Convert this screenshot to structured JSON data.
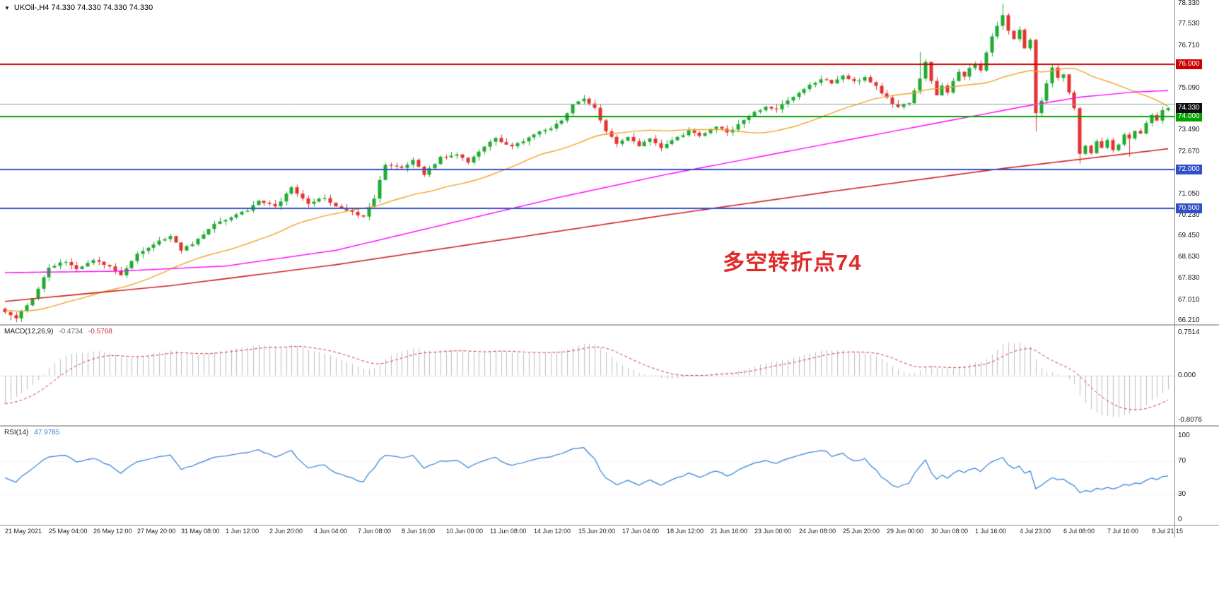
{
  "header": {
    "symbol_ohlc_label": "UKOil-,H4 74.330 74.330 74.330 74.330"
  },
  "annotation": {
    "text": "多空转折点74",
    "color": "#e02a2a"
  },
  "colors": {
    "up": "#1fab30",
    "down": "#e43232",
    "ma_fast": "#efa32a",
    "ma_mid": "#ff00ff",
    "ma_slow": "#d02020",
    "macd_hist": "#bdbdbd",
    "macd_signal": "#d43434",
    "rsi": "#2f7fd6",
    "axis_text": "#1a1a1a",
    "tag_current_bg": "#101010"
  },
  "chart_data": [
    {
      "type": "candlestick",
      "symbol": "UKOil-",
      "timeframe": "H4",
      "bars": 212,
      "current_price": 74.33,
      "ylim": [
        66.08,
        78.46
      ],
      "noise": 0.09,
      "wick": 0.16,
      "noise_seed": 29,
      "close_path": [
        [
          0,
          66.5
        ],
        [
          2,
          66.3
        ],
        [
          5,
          67.1
        ],
        [
          8,
          68.2
        ],
        [
          11,
          68.5
        ],
        [
          13,
          68.15
        ],
        [
          16,
          68.55
        ],
        [
          19,
          68.3
        ],
        [
          21,
          67.95
        ],
        [
          24,
          68.75
        ],
        [
          27,
          69.15
        ],
        [
          30,
          69.45
        ],
        [
          32,
          68.9
        ],
        [
          35,
          69.3
        ],
        [
          38,
          69.9
        ],
        [
          41,
          70.15
        ],
        [
          44,
          70.45
        ],
        [
          46,
          70.8
        ],
        [
          49,
          70.55
        ],
        [
          52,
          71.3
        ],
        [
          55,
          70.7
        ],
        [
          58,
          70.9
        ],
        [
          60,
          70.55
        ],
        [
          63,
          70.35
        ],
        [
          65,
          70.2
        ],
        [
          67,
          70.9
        ],
        [
          69,
          72.2
        ],
        [
          72,
          72.05
        ],
        [
          74,
          72.35
        ],
        [
          76,
          71.8
        ],
        [
          79,
          72.45
        ],
        [
          82,
          72.6
        ],
        [
          84,
          72.25
        ],
        [
          87,
          72.9
        ],
        [
          89,
          73.15
        ],
        [
          92,
          72.85
        ],
        [
          94,
          73.1
        ],
        [
          97,
          73.45
        ],
        [
          99,
          73.55
        ],
        [
          101,
          73.85
        ],
        [
          103,
          74.45
        ],
        [
          105,
          74.7
        ],
        [
          107,
          74.3
        ],
        [
          109,
          73.45
        ],
        [
          111,
          72.95
        ],
        [
          113,
          73.25
        ],
        [
          115,
          72.9
        ],
        [
          117,
          73.2
        ],
        [
          119,
          72.8
        ],
        [
          121,
          73.1
        ],
        [
          124,
          73.45
        ],
        [
          126,
          73.3
        ],
        [
          129,
          73.6
        ],
        [
          131,
          73.4
        ],
        [
          134,
          73.85
        ],
        [
          136,
          74.15
        ],
        [
          138,
          74.4
        ],
        [
          140,
          74.3
        ],
        [
          142,
          74.65
        ],
        [
          144,
          74.9
        ],
        [
          146,
          75.2
        ],
        [
          148,
          75.45
        ],
        [
          150,
          75.3
        ],
        [
          152,
          75.55
        ],
        [
          154,
          75.35
        ],
        [
          156,
          75.5
        ],
        [
          158,
          75.15
        ],
        [
          160,
          74.7
        ],
        [
          162,
          74.35
        ],
        [
          164,
          74.55
        ],
        [
          166,
          75.5
        ],
        [
          167,
          76.1
        ],
        [
          168,
          75.4
        ],
        [
          169,
          74.85
        ],
        [
          170,
          75.2
        ],
        [
          171,
          74.9
        ],
        [
          172,
          75.35
        ],
        [
          173,
          75.7
        ],
        [
          174,
          75.5
        ],
        [
          175,
          75.85
        ],
        [
          176,
          76.05
        ],
        [
          177,
          75.8
        ],
        [
          178,
          76.45
        ],
        [
          179,
          77.05
        ],
        [
          180,
          77.5
        ],
        [
          181,
          77.9
        ],
        [
          182,
          77.3
        ],
        [
          183,
          77.0
        ],
        [
          184,
          77.35
        ],
        [
          185,
          76.6
        ],
        [
          186,
          76.9
        ],
        [
          187,
          74.1
        ],
        [
          188,
          74.6
        ],
        [
          189,
          75.3
        ],
        [
          190,
          75.85
        ],
        [
          191,
          75.5
        ],
        [
          192,
          75.6
        ],
        [
          193,
          74.9
        ],
        [
          194,
          74.3
        ],
        [
          195,
          72.6
        ],
        [
          196,
          72.85
        ],
        [
          197,
          72.6
        ],
        [
          198,
          73.1
        ],
        [
          199,
          72.8
        ],
        [
          200,
          73.15
        ],
        [
          201,
          72.7
        ],
        [
          202,
          72.95
        ],
        [
          203,
          73.3
        ],
        [
          204,
          73.2
        ],
        [
          205,
          73.5
        ],
        [
          206,
          73.4
        ],
        [
          207,
          73.8
        ],
        [
          208,
          74.05
        ],
        [
          209,
          73.9
        ],
        [
          210,
          74.25
        ],
        [
          211,
          74.33
        ]
      ],
      "wick_overrides": [
        [
          1,
          null,
          66.23
        ],
        [
          166,
          76.48,
          null
        ],
        [
          181,
          78.32,
          null
        ],
        [
          187,
          null,
          73.44
        ],
        [
          195,
          null,
          72.2
        ],
        [
          204,
          null,
          72.48
        ]
      ],
      "ma_lines": [
        {
          "name": "ma-fast",
          "type": "sma",
          "period": 30,
          "seed": 66.6,
          "color_key": "ma_fast",
          "width": 1.4
        },
        {
          "name": "ma-mid",
          "type": "path",
          "color_key": "ma_mid",
          "width": 1.4,
          "path": [
            [
              0,
              68.05
            ],
            [
              20,
              68.1
            ],
            [
              40,
              68.3
            ],
            [
              60,
              68.9
            ],
            [
              80,
              69.9
            ],
            [
              100,
              70.9
            ],
            [
              120,
              71.8
            ],
            [
              140,
              72.6
            ],
            [
              160,
              73.4
            ],
            [
              175,
              74.0
            ],
            [
              185,
              74.4
            ],
            [
              195,
              74.75
            ],
            [
              205,
              74.95
            ],
            [
              211,
              75.0
            ]
          ]
        },
        {
          "name": "ma-slow",
          "type": "path",
          "color_key": "ma_slow",
          "width": 1.6,
          "path": [
            [
              0,
              66.95
            ],
            [
              30,
              67.55
            ],
            [
              60,
              68.35
            ],
            [
              90,
              69.3
            ],
            [
              120,
              70.25
            ],
            [
              150,
              71.15
            ],
            [
              180,
              72.0
            ],
            [
              200,
              72.5
            ],
            [
              211,
              72.78
            ]
          ]
        }
      ],
      "levels": [
        {
          "value": 76.0,
          "label": "76.000",
          "color": "#cc0000",
          "tag": true
        },
        {
          "value": 74.0,
          "label": "74.000",
          "color": "#00a000",
          "tag": true
        },
        {
          "value": 72.0,
          "label": "72.000",
          "color": "#3050c8",
          "tag": true
        },
        {
          "value": 70.5,
          "label": "70.500",
          "color": "#3050c8",
          "tag": true
        },
        {
          "value": 74.49,
          "label": "",
          "color": "#90a0a0",
          "tag": false
        }
      ],
      "current_tag": {
        "label": "74.330",
        "value": 74.33
      },
      "y_ticks": [
        {
          "label": "78.330",
          "value": 78.33
        },
        {
          "label": "77.530",
          "value": 77.53
        },
        {
          "label": "76.710",
          "value": 76.71
        },
        {
          "label": "75.090",
          "value": 75.09
        },
        {
          "label": "73.490",
          "value": 73.49
        },
        {
          "label": "72.670",
          "value": 72.67
        },
        {
          "label": "71.050",
          "value": 71.05
        },
        {
          "label": "70.230",
          "value": 70.23
        },
        {
          "label": "69.450",
          "value": 69.45
        },
        {
          "label": "68.630",
          "value": 68.63
        },
        {
          "label": "67.830",
          "value": 67.83
        },
        {
          "label": "67.010",
          "value": 67.01
        },
        {
          "label": "66.210",
          "value": 66.21
        }
      ],
      "x_labels": [
        "21 May 2021",
        "25 May 04:00",
        "26 May 12:00",
        "27 May 20:00",
        "31 May 08:00",
        "1 Jun 12:00",
        "2 Jun 20:00",
        "4 Jun 04:00",
        "7 Jun 08:00",
        "8 Jun 16:00",
        "10 Jun 00:00",
        "11 Jun 08:00",
        "14 Jun 12:00",
        "15 Jun 20:00",
        "17 Jun 04:00",
        "18 Jun 12:00",
        "21 Jun 16:00",
        "23 Jun 00:00",
        "24 Jun 08:00",
        "25 Jun 20:00",
        "29 Jun 00:00",
        "30 Jun 08:00",
        "1 Jul 16:00",
        "4 Jul 23:00",
        "6 Jul 08:00",
        "7 Jul 16:00",
        "8 Jul 21:15"
      ]
    },
    {
      "type": "macd",
      "label": "MACD(12,26,9)",
      "macd_value": "-0.4734",
      "signal_value": "-0.5768",
      "fast": 12,
      "slow": 26,
      "signal": 9,
      "initial_offset": -0.55,
      "offset_decay": 6,
      "y_ticks": [
        "0.7514",
        "0.000",
        "-0.8076"
      ]
    },
    {
      "type": "rsi",
      "label": "RSI(14)",
      "value": "47.9785",
      "period": 14,
      "levels": [
        70,
        30
      ],
      "y_ticks": [
        "100",
        "70",
        "30",
        "0"
      ]
    }
  ]
}
